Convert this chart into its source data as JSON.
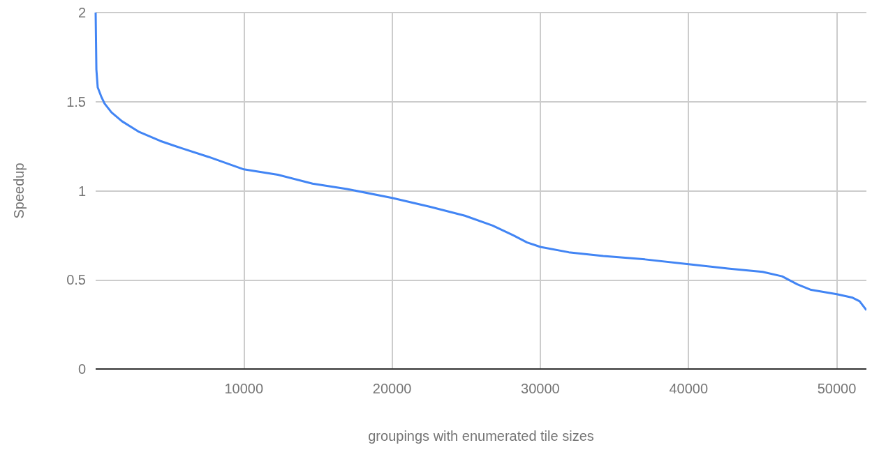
{
  "chart_data": {
    "type": "line",
    "xlabel": "groupings with enumerated tile sizes",
    "ylabel": "Speedup",
    "xlim": [
      0,
      52000
    ],
    "xticks": [
      10000,
      20000,
      30000,
      40000,
      50000
    ],
    "ylim": [
      0,
      2
    ],
    "yticks": [
      0,
      0.5,
      1,
      1.5,
      2
    ],
    "grid": true,
    "legend": false,
    "marker": "none",
    "line_style": "solid",
    "series": [
      {
        "color": "#4285f4",
        "x": [
          0,
          50,
          140,
          370,
          600,
          1070,
          1780,
          2940,
          4350,
          5750,
          7620,
          10000,
          12290,
          14630,
          16960,
          20000,
          22570,
          24910,
          26780,
          28180,
          29110,
          30000,
          31920,
          34250,
          37060,
          40000,
          42660,
          45000,
          46310,
          47340,
          48270,
          50000,
          51070,
          51540,
          52000
        ],
        "values": [
          2.0,
          1.68,
          1.58,
          1.53,
          1.49,
          1.44,
          1.39,
          1.33,
          1.28,
          1.24,
          1.19,
          1.12,
          1.09,
          1.04,
          1.01,
          0.96,
          0.91,
          0.86,
          0.805,
          0.75,
          0.71,
          0.685,
          0.655,
          0.634,
          0.615,
          0.588,
          0.564,
          0.545,
          0.52,
          0.475,
          0.444,
          0.42,
          0.4,
          0.38,
          0.33
        ]
      }
    ]
  }
}
